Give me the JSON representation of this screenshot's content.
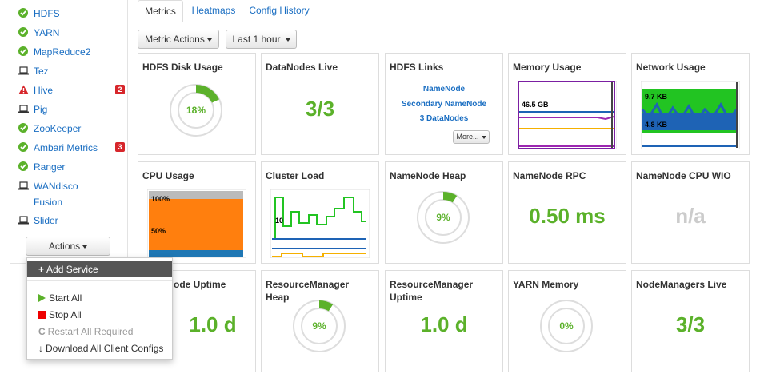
{
  "sidebar": {
    "items": [
      {
        "label": "HDFS",
        "icon": "check-icon",
        "status": "ok"
      },
      {
        "label": "YARN",
        "icon": "check-icon",
        "status": "ok"
      },
      {
        "label": "MapReduce2",
        "icon": "check-icon",
        "status": "ok"
      },
      {
        "label": "Tez",
        "icon": "laptop-icon",
        "status": "client"
      },
      {
        "label": "Hive",
        "icon": "warning-icon",
        "status": "alert",
        "badge": "2"
      },
      {
        "label": "Pig",
        "icon": "laptop-icon",
        "status": "client"
      },
      {
        "label": "ZooKeeper",
        "icon": "check-icon",
        "status": "ok"
      },
      {
        "label": "Ambari Metrics",
        "icon": "check-icon",
        "status": "ok",
        "badge": "3"
      },
      {
        "label": "Ranger",
        "icon": "check-icon",
        "status": "ok"
      },
      {
        "label": "WANdisco Fusion",
        "line1": "WANdisco",
        "line2": "Fusion",
        "icon": "laptop-icon",
        "status": "client"
      },
      {
        "label": "Slider",
        "icon": "laptop-icon",
        "status": "client"
      }
    ],
    "actions_label": "Actions"
  },
  "actions_menu": {
    "add_service": "Add Service",
    "start_all": "Start All",
    "stop_all": "Stop All",
    "restart_all": "Restart All Required",
    "download_configs": "Download All Client Configs"
  },
  "tabs": [
    "Metrics",
    "Heatmaps",
    "Config History"
  ],
  "toolbar": {
    "metric_actions": "Metric Actions",
    "time_range": "Last 1 hour"
  },
  "cards": {
    "hdfs_disk_usage": {
      "title": "HDFS Disk Usage",
      "value": "18%",
      "fraction": 0.18
    },
    "datanodes_live": {
      "title": "DataNodes Live",
      "value": "3/3"
    },
    "hdfs_links": {
      "title": "HDFS Links",
      "links": [
        "NameNode",
        "Secondary NameNode",
        "3 DataNodes"
      ],
      "more": "More..."
    },
    "memory_usage": {
      "title": "Memory Usage",
      "label": "46.5 GB"
    },
    "network_usage": {
      "title": "Network Usage",
      "label_top": "9.7 KB",
      "label_bottom": "4.8 KB"
    },
    "cpu_usage": {
      "title": "CPU Usage",
      "label_top": "100%",
      "label_mid": "50%"
    },
    "cluster_load": {
      "title": "Cluster Load",
      "label": "10"
    },
    "namenode_heap": {
      "title": "NameNode Heap",
      "value": "9%",
      "fraction": 0.09
    },
    "namenode_rpc": {
      "title": "NameNode RPC",
      "value": "0.50 ms"
    },
    "namenode_cpu_wio": {
      "title": "NameNode CPU WIO",
      "value": "n/a"
    },
    "namenode_uptime": {
      "title": "NameNode Uptime",
      "title_visible": "ode Uptime",
      "value": "1.0 d"
    },
    "rm_heap": {
      "title": "ResourceManager Heap",
      "line1": "ResourceManager",
      "line2": "Heap",
      "value": "9%",
      "fraction": 0.09
    },
    "rm_uptime": {
      "title": "ResourceManager Uptime",
      "line1": "ResourceManager",
      "line2": "Uptime",
      "value": "1.0 d"
    },
    "yarn_memory": {
      "title": "YARN Memory",
      "value": "0%",
      "fraction": 0.0
    },
    "nodemanagers_live": {
      "title": "NodeManagers Live",
      "value": "3/3"
    }
  },
  "colors": {
    "ok": "#5bb12a",
    "alert": "#d7262b",
    "link": "#1a6ec2",
    "na": "#cccccc"
  }
}
